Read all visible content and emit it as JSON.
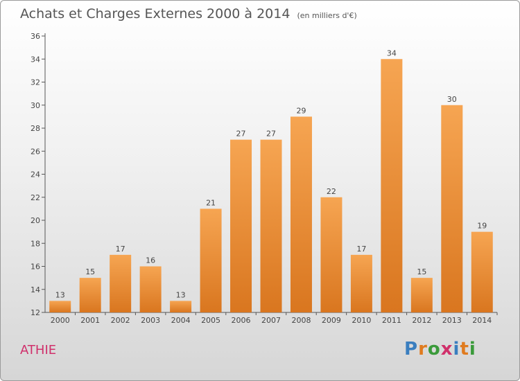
{
  "title": "Achats et Charges Externes 2000 à 2014",
  "subtitle": "(en milliers d'€)",
  "commune": "ATHIE",
  "logo": {
    "text": "Proxiti",
    "letters": [
      {
        "ch": "P",
        "color": "#3a7ebf"
      },
      {
        "ch": "r",
        "color": "#e07b1f"
      },
      {
        "ch": "o",
        "color": "#3a9a3a"
      },
      {
        "ch": "x",
        "color": "#d0306b"
      },
      {
        "ch": "i",
        "color": "#3a7ebf"
      },
      {
        "ch": "t",
        "color": "#e07b1f"
      },
      {
        "ch": "i",
        "color": "#3a9a3a"
      }
    ]
  },
  "colors": {
    "bar_top": "#f6a552",
    "bar_bottom": "#d9761f",
    "commune": "#d0306b"
  },
  "chart_data": {
    "type": "bar",
    "title": "Achats et Charges Externes 2000 à 2014",
    "categories": [
      "2000",
      "2001",
      "2002",
      "2003",
      "2004",
      "2005",
      "2006",
      "2007",
      "2008",
      "2009",
      "2010",
      "2011",
      "2012",
      "2013",
      "2014"
    ],
    "values": [
      13,
      15,
      17,
      16,
      13,
      21,
      27,
      27,
      29,
      22,
      17,
      34,
      15,
      30,
      19
    ],
    "ylim": [
      12,
      36
    ],
    "yticks": [
      12,
      14,
      16,
      18,
      20,
      22,
      24,
      26,
      28,
      30,
      32,
      34,
      36
    ],
    "grid": false,
    "data_labels": true
  }
}
